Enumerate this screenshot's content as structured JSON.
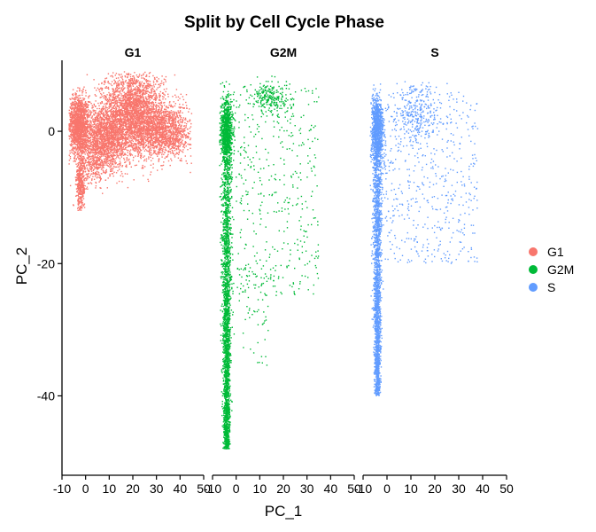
{
  "chart_data": {
    "type": "scatter",
    "title": "Split by Cell Cycle Phase",
    "xlabel": "PC_1",
    "ylabel": "PC_2",
    "xlim": [
      -10,
      50
    ],
    "ylim": [
      -52,
      11
    ],
    "x_ticks": [
      -10,
      0,
      10,
      20,
      30,
      40,
      50
    ],
    "y_ticks": [
      0,
      -20,
      -40
    ],
    "grid": false,
    "legend_position": "right",
    "panels": [
      "G1",
      "G2M",
      "S"
    ],
    "series": [
      {
        "name": "G1",
        "color": "#F8766D",
        "components": [
          {
            "x": [
              -7,
              50
            ],
            "y": [
              -12,
              5
            ],
            "n": 0
          },
          {
            "shape": "gauss",
            "cx": -3,
            "cy": 1,
            "sx": 2.2,
            "sy": 2.2,
            "n": 1400
          },
          {
            "shape": "gauss",
            "cx": 8,
            "cy": -1,
            "sx": 6,
            "sy": 2.2,
            "n": 1800
          },
          {
            "shape": "gauss",
            "cx": 20,
            "cy": 3,
            "sx": 6.5,
            "sy": 3,
            "n": 2600
          },
          {
            "shape": "gauss",
            "cx": 33,
            "cy": 0,
            "sx": 6,
            "sy": 2,
            "n": 1500
          },
          {
            "shape": "gauss",
            "cx": -2,
            "cy": -8,
            "sx": 1,
            "sy": 2,
            "n": 380
          },
          {
            "shape": "gauss",
            "cx": 4,
            "cy": -5,
            "sx": 4,
            "sy": 1.5,
            "n": 300
          }
        ],
        "x_range": [
          -7,
          45
        ],
        "y_range": [
          -12,
          9
        ]
      },
      {
        "name": "G2M",
        "color": "#00BA38",
        "components": [
          {
            "shape": "column",
            "cx": -4,
            "sx": 1.3,
            "ytop": 5,
            "ybottom": -48,
            "n": 2600,
            "skew": 0.6
          },
          {
            "shape": "gauss",
            "cx": -4,
            "cy": 0,
            "sx": 1.3,
            "sy": 2.5,
            "n": 900
          },
          {
            "shape": "uniform",
            "x0": 0,
            "x1": 35,
            "y0": -25,
            "y1": 7,
            "n": 420
          },
          {
            "shape": "gauss",
            "cx": 14,
            "cy": 5,
            "sx": 4,
            "sy": 1.2,
            "n": 220
          },
          {
            "shape": "uniform",
            "x0": 0,
            "x1": 15,
            "y0": -36,
            "y1": -20,
            "n": 60
          }
        ],
        "x_range": [
          -7,
          43
        ],
        "y_range": [
          -50.5,
          9
        ]
      },
      {
        "name": "S",
        "color": "#619CFF",
        "components": [
          {
            "shape": "column",
            "cx": -4,
            "sx": 1.2,
            "ytop": 5,
            "ybottom": -40,
            "n": 2200,
            "skew": 0.8
          },
          {
            "shape": "gauss",
            "cx": -4,
            "cy": 0,
            "sx": 1.3,
            "sy": 2.5,
            "n": 800
          },
          {
            "shape": "uniform",
            "x0": -1,
            "x1": 38,
            "y0": -20,
            "y1": 6,
            "n": 500
          },
          {
            "shape": "gauss",
            "cx": 12,
            "cy": 3,
            "sx": 5,
            "sy": 2.5,
            "n": 300
          }
        ],
        "x_range": [
          -7,
          43
        ],
        "y_range": [
          -40.5,
          7.5
        ]
      }
    ]
  },
  "legend": {
    "items": [
      {
        "label": "G1",
        "color": "#F8766D"
      },
      {
        "label": "G2M",
        "color": "#00BA38"
      },
      {
        "label": "S",
        "color": "#619CFF"
      }
    ]
  }
}
